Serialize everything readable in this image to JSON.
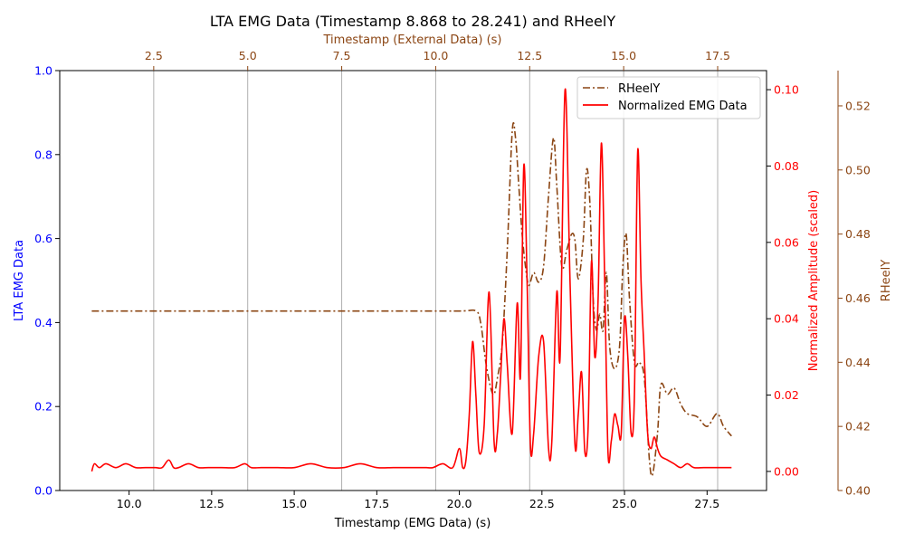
{
  "chart_data": {
    "type": "line",
    "title": "LTA EMG Data (Timestamp 8.868 to 28.241) and RHeelY",
    "xlabel": "Timestamp (EMG Data) (s)",
    "xlim": [
      7.9,
      29.3
    ],
    "xticks": [
      "10.0",
      "12.5",
      "15.0",
      "17.5",
      "20.0",
      "22.5",
      "25.0",
      "27.5"
    ],
    "top_xlabel": "Timestamp (External Data) (s)",
    "top_xlim": [
      0.0,
      18.8
    ],
    "top_xticks": [
      "2.5",
      "5.0",
      "7.5",
      "10.0",
      "12.5",
      "15.0",
      "17.5"
    ],
    "ylabel_left": "LTA EMG Data",
    "ylim_left": [
      0.0,
      1.0
    ],
    "yticks_left": [
      "0.0",
      "0.2",
      "0.4",
      "0.6",
      "0.8",
      "1.0"
    ],
    "ylabel_right": "Normalized Amplitude (scaled)",
    "ylim_right": [
      -0.005,
      0.105
    ],
    "yticks_right": [
      "0.00",
      "0.02",
      "0.04",
      "0.06",
      "0.08",
      "0.10"
    ],
    "ylabel_far_right": "RHeelY",
    "ylim_far_right": [
      0.4,
      0.531
    ],
    "yticks_far_right": [
      "0.40",
      "0.42",
      "0.44",
      "0.46",
      "0.48",
      "0.50",
      "0.52"
    ],
    "grid": "vertical lines at top-axis ticks",
    "legend": {
      "placement": "top-right",
      "entries": [
        "RHeelY",
        "Normalized EMG Data"
      ]
    },
    "colors": {
      "emg": "#ff0000",
      "rheel": "#8b4513",
      "left_axis": "#0000ff",
      "grid": "#b0b0b0"
    },
    "series": [
      {
        "name": "RHeelY",
        "axis": "far_right",
        "style": "dash-dot",
        "x": [
          8.87,
          10.0,
          12.0,
          14.0,
          16.0,
          18.0,
          20.0,
          20.5,
          20.65,
          20.8,
          20.95,
          21.05,
          21.15,
          21.3,
          21.45,
          21.6,
          21.7,
          21.8,
          21.9,
          22.0,
          22.1,
          22.25,
          22.4,
          22.55,
          22.7,
          22.85,
          22.95,
          23.1,
          23.25,
          23.4,
          23.5,
          23.6,
          23.75,
          23.85,
          23.95,
          24.05,
          24.15,
          24.25,
          24.35,
          24.45,
          24.55,
          24.7,
          24.85,
          24.95,
          25.05,
          25.15,
          25.3,
          25.45,
          25.6,
          25.75,
          25.85,
          26.0,
          26.1,
          26.3,
          26.5,
          26.7,
          26.9,
          27.2,
          27.5,
          27.8,
          28.0,
          28.24
        ],
        "y": [
          0.456,
          0.456,
          0.456,
          0.456,
          0.456,
          0.456,
          0.456,
          0.456,
          0.452,
          0.44,
          0.432,
          0.43,
          0.435,
          0.446,
          0.475,
          0.512,
          0.51,
          0.495,
          0.48,
          0.47,
          0.464,
          0.468,
          0.465,
          0.47,
          0.492,
          0.51,
          0.495,
          0.47,
          0.475,
          0.48,
          0.478,
          0.466,
          0.478,
          0.5,
          0.49,
          0.46,
          0.45,
          0.455,
          0.45,
          0.468,
          0.445,
          0.438,
          0.445,
          0.47,
          0.48,
          0.46,
          0.44,
          0.44,
          0.435,
          0.41,
          0.405,
          0.418,
          0.433,
          0.43,
          0.432,
          0.427,
          0.424,
          0.423,
          0.42,
          0.424,
          0.42,
          0.417
        ]
      },
      {
        "name": "Normalized EMG Data",
        "axis": "right",
        "style": "solid",
        "x": [
          8.87,
          8.95,
          9.1,
          9.3,
          9.6,
          9.9,
          10.2,
          10.5,
          10.8,
          11.0,
          11.2,
          11.35,
          11.5,
          11.8,
          12.1,
          12.4,
          12.8,
          13.2,
          13.5,
          13.7,
          14.0,
          14.5,
          15.0,
          15.5,
          16.0,
          16.5,
          17.0,
          17.5,
          18.0,
          18.5,
          19.0,
          19.2,
          19.5,
          19.8,
          20.0,
          20.1,
          20.2,
          20.3,
          20.4,
          20.5,
          20.6,
          20.75,
          20.9,
          21.05,
          21.15,
          21.25,
          21.35,
          21.45,
          21.6,
          21.75,
          21.85,
          21.95,
          22.05,
          22.15,
          22.25,
          22.4,
          22.55,
          22.7,
          22.8,
          22.95,
          23.05,
          23.2,
          23.35,
          23.5,
          23.6,
          23.7,
          23.8,
          23.9,
          24.0,
          24.1,
          24.2,
          24.3,
          24.4,
          24.5,
          24.6,
          24.7,
          24.8,
          24.9,
          25.0,
          25.1,
          25.2,
          25.3,
          25.4,
          25.5,
          25.6,
          25.7,
          25.8,
          25.9,
          26.0,
          26.1,
          26.3,
          26.5,
          26.7,
          26.9,
          27.1,
          27.4,
          27.7,
          28.0,
          28.24
        ],
        "y": [
          0.0,
          0.002,
          0.001,
          0.002,
          0.001,
          0.002,
          0.001,
          0.001,
          0.001,
          0.001,
          0.003,
          0.001,
          0.001,
          0.002,
          0.001,
          0.001,
          0.001,
          0.001,
          0.002,
          0.001,
          0.001,
          0.001,
          0.001,
          0.002,
          0.001,
          0.001,
          0.002,
          0.001,
          0.001,
          0.001,
          0.001,
          0.001,
          0.002,
          0.001,
          0.006,
          0.001,
          0.003,
          0.015,
          0.034,
          0.02,
          0.005,
          0.012,
          0.047,
          0.008,
          0.01,
          0.025,
          0.04,
          0.028,
          0.01,
          0.044,
          0.025,
          0.08,
          0.05,
          0.007,
          0.01,
          0.03,
          0.034,
          0.006,
          0.008,
          0.047,
          0.03,
          0.1,
          0.05,
          0.007,
          0.015,
          0.026,
          0.005,
          0.012,
          0.055,
          0.03,
          0.045,
          0.086,
          0.05,
          0.005,
          0.008,
          0.015,
          0.012,
          0.01,
          0.04,
          0.03,
          0.01,
          0.02,
          0.084,
          0.05,
          0.03,
          0.01,
          0.006,
          0.009,
          0.006,
          0.004,
          0.003,
          0.002,
          0.001,
          0.002,
          0.001,
          0.001,
          0.001,
          0.001,
          0.001
        ]
      }
    ]
  }
}
